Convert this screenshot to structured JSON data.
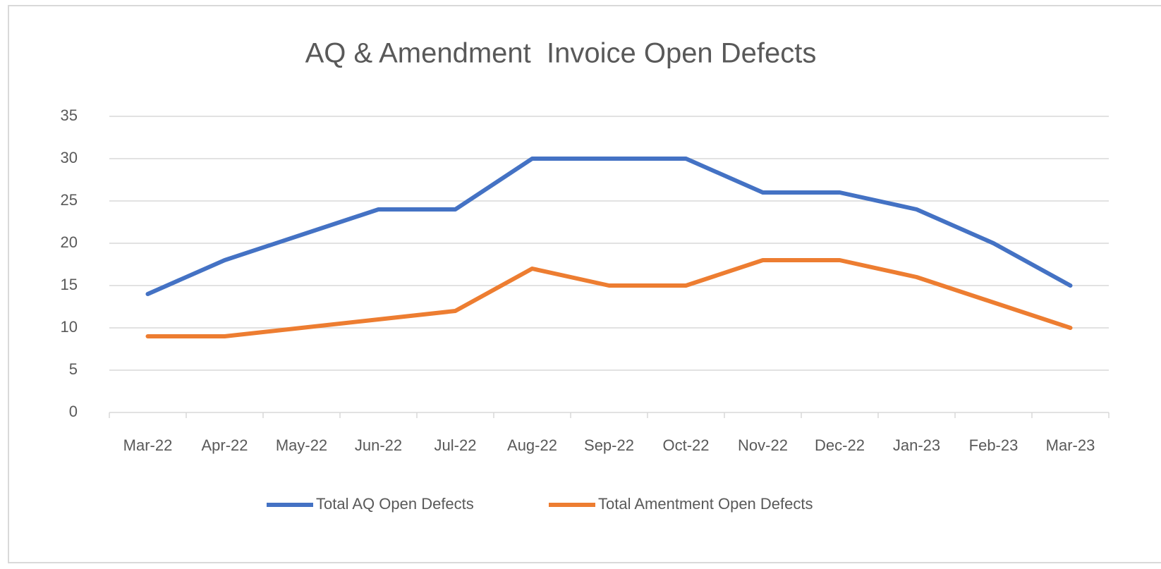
{
  "chart_data": {
    "type": "line",
    "title": "AQ & Amendment  Invoice Open Defects",
    "categories": [
      "Mar-22",
      "Apr-22",
      "May-22",
      "Jun-22",
      "Jul-22",
      "Aug-22",
      "Sep-22",
      "Oct-22",
      "Nov-22",
      "Dec-22",
      "Jan-23",
      "Feb-23",
      "Mar-23"
    ],
    "series": [
      {
        "name": "Total AQ Open Defects",
        "color": "#4472c4",
        "values": [
          14,
          18,
          21,
          24,
          24,
          30,
          30,
          30,
          26,
          26,
          24,
          20,
          15
        ]
      },
      {
        "name": "Total Amentment Open Defects",
        "color": "#ed7d31",
        "values": [
          9,
          9,
          10,
          11,
          12,
          17,
          15,
          15,
          18,
          18,
          16,
          13,
          10
        ]
      }
    ],
    "ylim": [
      0,
      35
    ],
    "yticks": [
      0,
      5,
      10,
      15,
      20,
      25,
      30,
      35
    ],
    "grid": true,
    "legend": "bottom"
  }
}
